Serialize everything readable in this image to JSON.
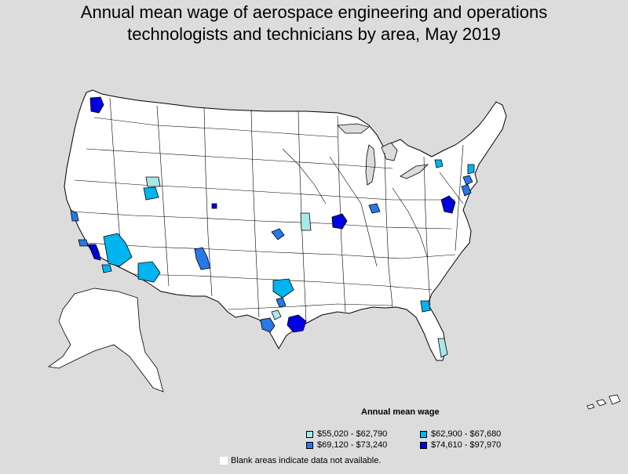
{
  "title_line1": "Annual mean wage of aerospace engineering and operations",
  "title_line2": "technologists and technicians by area, May 2019",
  "legend": {
    "title": "Annual mean wage",
    "items": [
      {
        "label": "$55,020 - $62,790",
        "color": "#a8e8e8"
      },
      {
        "label": "$62,900 - $67,680",
        "color": "#00b4f0"
      },
      {
        "label": "$69,120 - $73,240",
        "color": "#2878e8"
      },
      {
        "label": "$74,610 - $97,970",
        "color": "#0000e0"
      }
    ]
  },
  "note": "Blank areas indicate data not available.",
  "colors": {
    "background": "#dcdcdc",
    "land": "#ffffff",
    "border": "#000000"
  }
}
